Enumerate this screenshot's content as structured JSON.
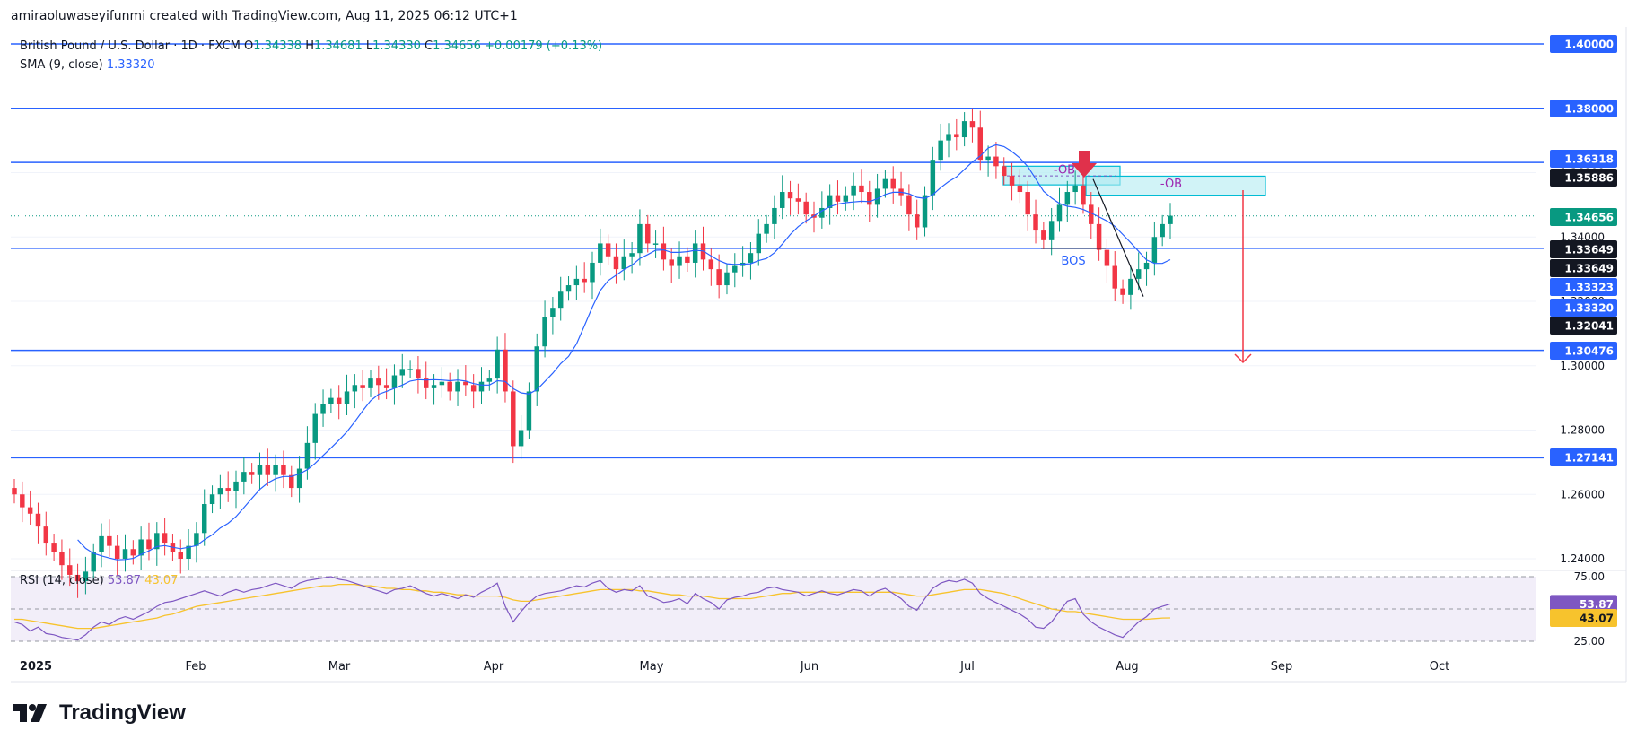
{
  "header": {
    "attribution": "amiraoluwaseyifunmi created with TradingView.com, Aug 11, 2025 06:12 UTC+1"
  },
  "legend": {
    "symbol": "British Pound / U.S. Dollar · 1D · FXCM",
    "o_label": "O",
    "o_value": "1.34338",
    "h_label": "H",
    "h_value": "1.34681",
    "l_label": "L",
    "l_value": "1.34330",
    "c_label": "C",
    "c_value": "1.34656",
    "change": "+0.00179 (+0.13%)",
    "sma_label": "SMA (9, close)",
    "sma_value": "1.33320",
    "rsi_label": "RSI (14, close)",
    "rsi_value": "53.87",
    "rsi_ma_value": "43.07"
  },
  "brand": {
    "name": "TradingView"
  },
  "colors": {
    "up": "#089981",
    "down": "#f23645",
    "level_line": "#2962ff",
    "sma": "#2962ff",
    "rsi": "#7e57c2",
    "rsi_ma": "#f7c32d",
    "ob_fill": "#b2ebf2",
    "ob_border": "#00bcd4",
    "arrow": "#f23645",
    "rsi_band": "#ede7f6"
  },
  "chart_data": {
    "type": "candlestick",
    "price_axis": {
      "ticks": [
        "1.24000",
        "1.26000",
        "1.28000",
        "1.30000",
        "1.32000",
        "1.34000",
        "1.36000",
        "1.38000",
        "1.40000"
      ],
      "tick_values": [
        1.24,
        1.26,
        1.28,
        1.3,
        1.32,
        1.34,
        1.36,
        1.38,
        1.4
      ]
    },
    "time_axis": {
      "labels": [
        "2025",
        "Feb",
        "Mar",
        "Apr",
        "May",
        "Jun",
        "Jul",
        "Aug",
        "Sep",
        "Oct"
      ]
    },
    "horizontal_levels": [
      {
        "value": 1.4,
        "label": "1.40000"
      },
      {
        "value": 1.38,
        "label": "1.38000"
      },
      {
        "value": 1.36318,
        "label": "1.36318"
      },
      {
        "value": 1.33649,
        "label": "1.33649"
      },
      {
        "value": 1.30476,
        "label": "1.30476"
      },
      {
        "value": 1.27141,
        "label": "1.27141"
      }
    ],
    "price_badges": [
      {
        "value": 1.4,
        "label": "1.40000",
        "style": "blue"
      },
      {
        "value": 1.38,
        "label": "1.38000",
        "style": "blue"
      },
      {
        "value": 1.36318,
        "label": "1.36318",
        "style": "blue"
      },
      {
        "value": 1.35886,
        "label": "1.35886",
        "style": "dark"
      },
      {
        "value": 1.34656,
        "label": "1.34656",
        "style": "green"
      },
      {
        "value": 1.33649,
        "label": "1.33649",
        "style": "dark"
      },
      {
        "value": 1.33649,
        "label": "1.33649",
        "style": "dark"
      },
      {
        "value": 1.33323,
        "label": "1.33323",
        "style": "blue"
      },
      {
        "value": 1.3332,
        "label": "1.33320",
        "style": "blue"
      },
      {
        "value": 1.32041,
        "label": "1.32041",
        "style": "dark"
      },
      {
        "value": 1.30476,
        "label": "1.30476",
        "style": "blue"
      },
      {
        "value": 1.27141,
        "label": "1.27141",
        "style": "blue"
      }
    ],
    "candles_close": [
      1.26,
      1.256,
      1.254,
      1.25,
      1.245,
      1.242,
      1.238,
      1.235,
      1.233,
      1.236,
      1.242,
      1.247,
      1.244,
      1.24,
      1.243,
      1.241,
      1.246,
      1.243,
      1.248,
      1.245,
      1.242,
      1.24,
      1.244,
      1.248,
      1.257,
      1.26,
      1.262,
      1.261,
      1.264,
      1.267,
      1.266,
      1.269,
      1.266,
      1.269,
      1.266,
      1.262,
      1.268,
      1.276,
      1.285,
      1.288,
      1.29,
      1.288,
      1.292,
      1.294,
      1.293,
      1.296,
      1.294,
      1.293,
      1.297,
      1.299,
      1.299,
      1.296,
      1.293,
      1.294,
      1.295,
      1.292,
      1.295,
      1.294,
      1.292,
      1.295,
      1.296,
      1.305,
      1.292,
      1.275,
      1.28,
      1.292,
      1.306,
      1.315,
      1.318,
      1.323,
      1.325,
      1.327,
      1.326,
      1.332,
      1.338,
      1.334,
      1.33,
      1.334,
      1.335,
      1.344,
      1.338,
      1.338,
      1.333,
      1.331,
      1.334,
      1.332,
      1.338,
      1.333,
      1.33,
      1.325,
      1.329,
      1.331,
      1.332,
      1.335,
      1.341,
      1.344,
      1.349,
      1.354,
      1.352,
      1.351,
      1.347,
      1.346,
      1.349,
      1.353,
      1.351,
      1.353,
      1.356,
      1.354,
      1.35,
      1.355,
      1.358,
      1.355,
      1.353,
      1.347,
      1.343,
      1.353,
      1.364,
      1.37,
      1.372,
      1.371,
      1.376,
      1.374,
      1.364,
      1.365,
      1.362,
      1.359,
      1.356,
      1.354,
      1.347,
      1.342,
      1.339,
      1.345,
      1.35,
      1.354,
      1.356,
      1.35,
      1.344,
      1.336,
      1.331,
      1.324,
      1.322,
      1.327,
      1.33,
      1.332,
      1.34,
      1.344,
      1.3466
    ],
    "sma": {
      "name": "SMA (9, close)",
      "last": 1.3332
    },
    "annotations": {
      "ob_label": "-OB",
      "ob_label_2": "-OB",
      "bos_label": "BOS",
      "ob_zone_1": {
        "top": 1.362,
        "bottom": 1.3562
      },
      "ob_zone_2": {
        "top": 1.3589,
        "bottom": 1.353
      },
      "bos_level": 1.3365,
      "target_level": 1.303
    },
    "rsi": {
      "upper": 75,
      "lower": 25,
      "mid": 50,
      "ticks": [
        "75.00",
        "25.00"
      ],
      "last": 53.87,
      "ma_last": 43.07,
      "values": [
        40,
        38,
        33,
        36,
        31,
        30,
        28,
        27,
        26,
        30,
        36,
        40,
        38,
        42,
        44,
        42,
        45,
        48,
        52,
        55,
        56,
        58,
        60,
        62,
        64,
        62,
        60,
        63,
        65,
        63,
        65,
        66,
        68,
        70,
        68,
        66,
        70,
        72,
        73,
        74,
        75,
        73,
        72,
        70,
        68,
        66,
        64,
        62,
        65,
        66,
        68,
        65,
        62,
        60,
        62,
        60,
        58,
        61,
        59,
        63,
        66,
        70,
        52,
        40,
        48,
        55,
        60,
        62,
        63,
        64,
        66,
        68,
        67,
        70,
        72,
        66,
        63,
        65,
        64,
        68,
        60,
        58,
        55,
        56,
        58,
        54,
        62,
        58,
        55,
        50,
        57,
        59,
        60,
        62,
        63,
        66,
        67,
        65,
        64,
        63,
        60,
        62,
        64,
        62,
        61,
        63,
        65,
        64,
        60,
        64,
        66,
        62,
        58,
        52,
        49,
        58,
        66,
        70,
        72,
        71,
        73,
        70,
        62,
        58,
        55,
        52,
        49,
        46,
        42,
        36,
        35,
        40,
        48,
        56,
        58,
        46,
        40,
        36,
        33,
        30,
        28,
        34,
        40,
        44,
        50,
        52,
        53.87
      ],
      "ma_values": [
        42,
        42,
        41,
        40,
        39,
        38,
        37,
        36,
        35,
        35,
        35,
        36,
        37,
        38,
        39,
        40,
        41,
        42,
        43,
        45,
        46,
        48,
        50,
        52,
        53,
        54,
        55,
        56,
        57,
        58,
        59,
        60,
        61,
        62,
        63,
        64,
        65,
        66,
        67,
        68,
        68,
        69,
        69,
        69,
        68,
        68,
        67,
        66,
        66,
        65,
        65,
        64,
        64,
        63,
        63,
        62,
        61,
        61,
        60,
        60,
        60,
        60,
        59,
        57,
        56,
        56,
        57,
        58,
        59,
        60,
        61,
        62,
        63,
        64,
        65,
        65,
        65,
        65,
        65,
        64,
        64,
        63,
        62,
        61,
        61,
        60,
        60,
        60,
        59,
        58,
        58,
        58,
        58,
        58,
        59,
        60,
        61,
        62,
        62,
        63,
        63,
        63,
        63,
        63,
        63,
        63,
        63,
        63,
        63,
        63,
        63,
        63,
        62,
        61,
        60,
        60,
        61,
        62,
        63,
        64,
        65,
        65,
        65,
        64,
        63,
        62,
        60,
        58,
        56,
        54,
        52,
        50,
        49,
        48,
        48,
        47,
        46,
        45,
        44,
        43,
        42,
        42,
        42,
        42,
        42.5,
        43,
        43.07
      ]
    }
  }
}
